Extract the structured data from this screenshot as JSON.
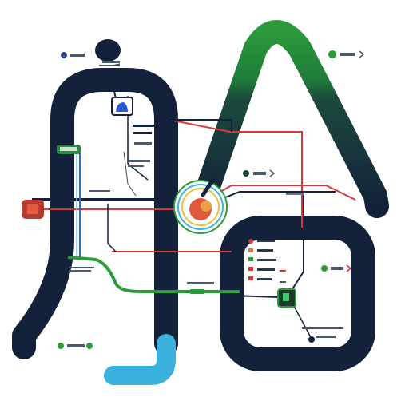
{
  "header": {
    "title": "",
    "subtitle_1": "",
    "subtitle_2": ""
  },
  "colors": {
    "navy": "#13213a",
    "green": "#2a9a3a",
    "dark_green": "#1d4b3a",
    "cyan": "#3bb2dd",
    "red": "#d43a3a",
    "black": "#1a1a1a"
  },
  "legend_groups": [
    {
      "id": "top-left",
      "items": [
        "navy-dot",
        "bars"
      ]
    },
    {
      "id": "top-right",
      "items": [
        "green-dot",
        "bars",
        "arrow"
      ]
    },
    {
      "id": "mid",
      "items": [
        "green-dot",
        "bars",
        "arrow"
      ]
    },
    {
      "id": "bottom-left",
      "items": [
        "green-dot",
        "bars",
        "green-dot"
      ]
    },
    {
      "id": "right-mid",
      "items": [
        "green-dot",
        "bars",
        "red-arrow"
      ]
    }
  ],
  "icons": {
    "central_hub": "apple-hub-icon",
    "left_station": "red-station-icon",
    "top_station": "blue-station-icon",
    "bottom_station": "green-station-icon"
  }
}
